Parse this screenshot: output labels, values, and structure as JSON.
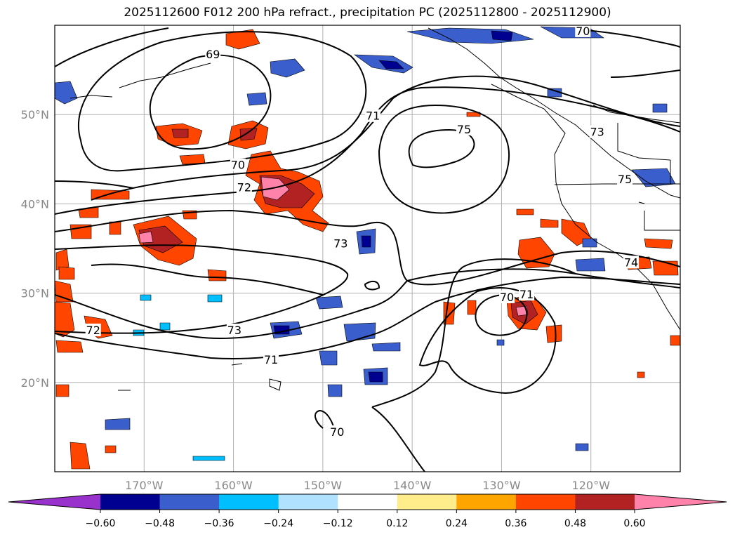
{
  "title": "2025112600 F012 200 hPa refract., precipitation PC (2025112800 - 2025112900)",
  "map": {
    "lon_range": [
      -180,
      -110
    ],
    "lat_range": [
      10,
      60
    ],
    "lon_labels": [
      {
        "lon": -170,
        "text": "170°W"
      },
      {
        "lon": -160,
        "text": "160°W"
      },
      {
        "lon": -150,
        "text": "150°W"
      },
      {
        "lon": -140,
        "text": "140°W"
      },
      {
        "lon": -130,
        "text": "130°W"
      },
      {
        "lon": -120,
        "text": "120°W"
      }
    ],
    "lat_labels": [
      {
        "lat": 50,
        "text": "50°N"
      },
      {
        "lat": 40,
        "text": "40°N"
      },
      {
        "lat": 30,
        "text": "30°N"
      },
      {
        "lat": 20,
        "text": "20°N"
      }
    ],
    "grid": true,
    "contour_labels": [
      {
        "text": "69",
        "lon": -162.3,
        "lat": 56.7
      },
      {
        "text": "70",
        "lon": -159.5,
        "lat": 44.3
      },
      {
        "text": "72",
        "lon": -158.8,
        "lat": 41.8
      },
      {
        "text": "71",
        "lon": -144.4,
        "lat": 49.8
      },
      {
        "text": "75",
        "lon": -134.2,
        "lat": 48.3
      },
      {
        "text": "73",
        "lon": -148.0,
        "lat": 35.5
      },
      {
        "text": "73",
        "lon": -119.3,
        "lat": 48.0
      },
      {
        "text": "75",
        "lon": -116.2,
        "lat": 42.7
      },
      {
        "text": "74",
        "lon": -115.5,
        "lat": 33.4
      },
      {
        "text": "70",
        "lon": -120.9,
        "lat": 59.3
      },
      {
        "text": "70",
        "lon": -129.4,
        "lat": 29.5
      },
      {
        "text": "71",
        "lon": -127.2,
        "lat": 29.8
      },
      {
        "text": "73",
        "lon": -159.9,
        "lat": 25.8
      },
      {
        "text": "72",
        "lon": -175.7,
        "lat": 25.8
      },
      {
        "text": "71",
        "lon": -155.8,
        "lat": 22.5
      },
      {
        "text": "70",
        "lon": -148.4,
        "lat": 14.4
      }
    ]
  },
  "colorbar": {
    "ticks": [
      "−0.60",
      "−0.48",
      "−0.36",
      "−0.24",
      "−0.12",
      "0.12",
      "0.24",
      "0.36",
      "0.48",
      "0.60"
    ],
    "colors": [
      "#9932cc",
      "#000090",
      "#3a5fcd",
      "#00bfff",
      "#b0e2ff",
      "#ffffff",
      "#ffec8b",
      "#ffa500",
      "#ff4500",
      "#b22222",
      "#ff82ab"
    ]
  }
}
